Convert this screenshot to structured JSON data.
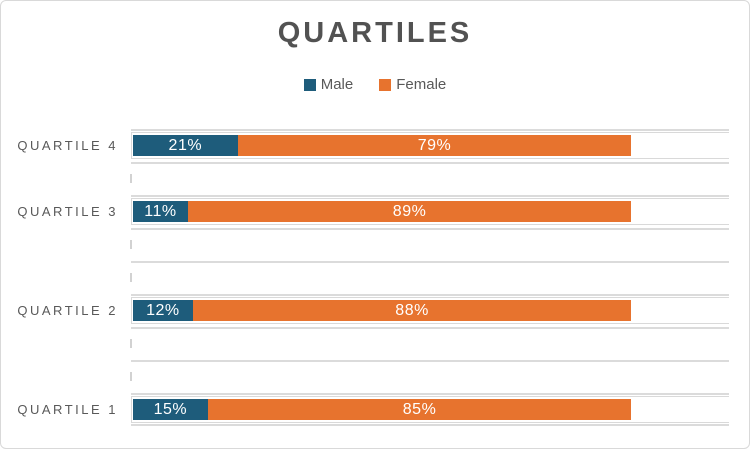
{
  "window": {
    "background": "#FFFFFF",
    "border_color": "#D9D9D9"
  },
  "chart_data": {
    "type": "bar",
    "orientation": "horizontal",
    "stacked": true,
    "percent_stacked": true,
    "title": "QUARTILES",
    "categories": [
      "QUARTILE 4",
      "QUARTILE 3",
      "QUARTILE 2",
      "QUARTILE 1"
    ],
    "series": [
      {
        "name": "Male",
        "color": "#1E5C7B",
        "values": [
          21,
          11,
          12,
          15
        ],
        "labels": [
          "21%",
          "11%",
          "12%",
          "15%"
        ]
      },
      {
        "name": "Female",
        "color": "#E7732E",
        "values": [
          79,
          89,
          88,
          85
        ],
        "labels": [
          "79%",
          "89%",
          "88%",
          "85%"
        ]
      }
    ],
    "legend_position": "top-center",
    "value_format": "percent",
    "data_label_position": "inside-center",
    "axis_max_percent": 120,
    "grid": true,
    "category_slots": {
      "total": 9,
      "bar_slots": [
        0,
        2,
        5,
        8
      ],
      "empty_slots": [
        1,
        3,
        4,
        6,
        7
      ]
    }
  },
  "palette": {
    "male": "#1E5C7B",
    "female": "#E7732E",
    "title_text": "#525252",
    "axis_text": "#595959",
    "bar_label_text": "#FFFFFF",
    "gridline": "#DBDBDB",
    "border": "#D9D9D9"
  }
}
